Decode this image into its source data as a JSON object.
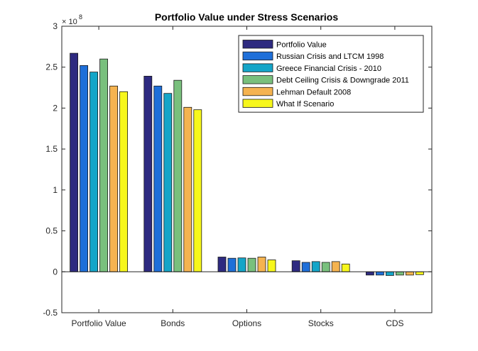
{
  "chart_data": {
    "type": "bar",
    "title": "Portfolio Value under Stress Scenarios",
    "xlabel": "",
    "ylabel": "",
    "y_exponent_base": "× 10",
    "y_exponent_power": "8",
    "ylim": [
      -0.5,
      3
    ],
    "yticks": [
      -0.5,
      0,
      0.5,
      1,
      1.5,
      2,
      2.5,
      3
    ],
    "ytick_labels": [
      "-0.5",
      "0",
      "0.5",
      "1",
      "1.5",
      "2",
      "2.5",
      "3"
    ],
    "categories": [
      "Portfolio Value",
      "Bonds",
      "Options",
      "Stocks",
      "CDS"
    ],
    "legend_position": "top-right",
    "grid": false,
    "series": [
      {
        "name": "Portfolio Value",
        "color": "#2e2a80",
        "values": [
          2.67,
          2.39,
          0.18,
          0.135,
          -0.04
        ]
      },
      {
        "name": "Russian Crisis and LTCM 1998",
        "color": "#1e6fd9",
        "values": [
          2.52,
          2.27,
          0.165,
          0.115,
          -0.04
        ]
      },
      {
        "name": "Greece Financial Crisis - 2010",
        "color": "#14a5c8",
        "values": [
          2.44,
          2.18,
          0.17,
          0.125,
          -0.045
        ]
      },
      {
        "name": "Debt Ceiling Crisis & Downgrade 2011",
        "color": "#79c07d",
        "values": [
          2.6,
          2.34,
          0.165,
          0.115,
          -0.04
        ]
      },
      {
        "name": "Lehman Default 2008",
        "color": "#f5b350",
        "values": [
          2.27,
          2.01,
          0.18,
          0.125,
          -0.04
        ]
      },
      {
        "name": "What If Scenario",
        "color": "#f7f71c",
        "values": [
          2.2,
          1.98,
          0.145,
          0.095,
          -0.035
        ]
      }
    ]
  }
}
